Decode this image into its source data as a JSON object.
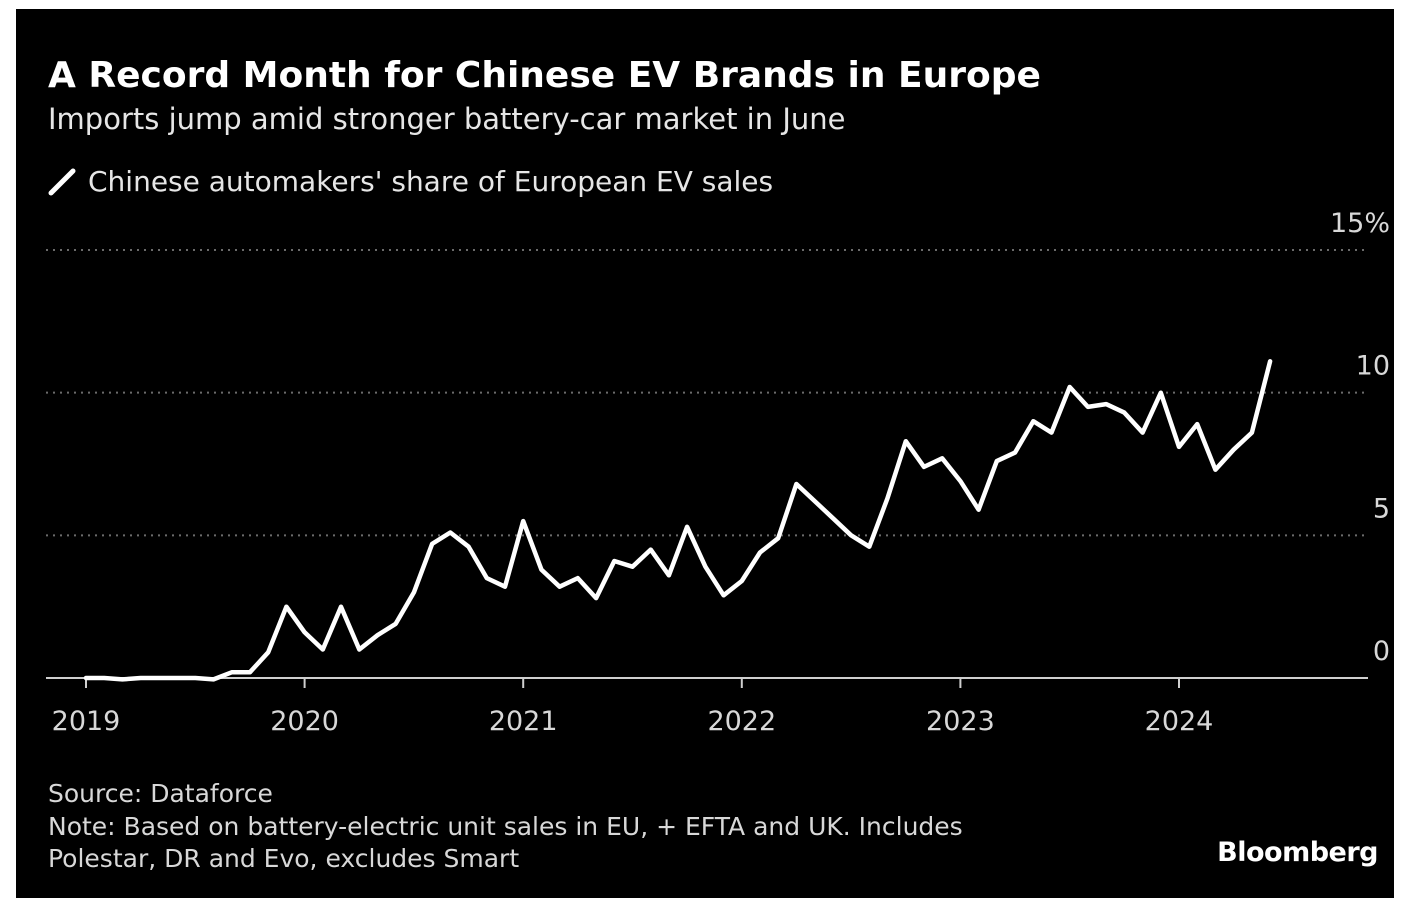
{
  "title": "A Record Month for Chinese EV Brands in Europe",
  "subtitle": "Imports jump amid stronger battery-car market in June",
  "legend_label": "Chinese automakers' share of European EV sales",
  "source": "Source: Dataforce",
  "note_line1": "Note: Based on battery-electric unit sales in EU, + EFTA and UK. Includes",
  "note_line2": "Polestar, DR and Evo, excludes Smart",
  "brand": "Bloomberg",
  "colors": {
    "background": "#000000",
    "line": "#ffffff",
    "grid": "#6b6b6b",
    "text": "#d8d8d8"
  },
  "chart_data": {
    "type": "line",
    "title": "A Record Month for Chinese EV Brands in Europe",
    "subtitle": "Imports jump amid stronger battery-car market in June",
    "xlabel": "",
    "ylabel": "",
    "x_ticks": [
      "2019",
      "2020",
      "2021",
      "2022",
      "2023",
      "2024"
    ],
    "y_ticks": [
      {
        "value": 0,
        "label": "0"
      },
      {
        "value": 5,
        "label": "5"
      },
      {
        "value": 10,
        "label": "10"
      },
      {
        "value": 15,
        "label": "15%"
      }
    ],
    "ylim": [
      0,
      15
    ],
    "y_axis_position": "right",
    "grid": "dotted horizontal",
    "legend_position": "top-left",
    "series": [
      {
        "name": "Chinese automakers' share of European EV sales",
        "x": [
          "2019-01",
          "2019-02",
          "2019-03",
          "2019-04",
          "2019-05",
          "2019-06",
          "2019-07",
          "2019-08",
          "2019-09",
          "2019-10",
          "2019-11",
          "2019-12",
          "2020-01",
          "2020-02",
          "2020-03",
          "2020-04",
          "2020-05",
          "2020-06",
          "2020-07",
          "2020-08",
          "2020-09",
          "2020-10",
          "2020-11",
          "2020-12",
          "2021-01",
          "2021-02",
          "2021-03",
          "2021-04",
          "2021-05",
          "2021-06",
          "2021-07",
          "2021-08",
          "2021-09",
          "2021-10",
          "2021-11",
          "2021-12",
          "2022-01",
          "2022-02",
          "2022-03",
          "2022-04",
          "2022-05",
          "2022-06",
          "2022-07",
          "2022-08",
          "2022-09",
          "2022-10",
          "2022-11",
          "2022-12",
          "2023-01",
          "2023-02",
          "2023-03",
          "2023-04",
          "2023-05",
          "2023-06",
          "2023-07",
          "2023-08",
          "2023-09",
          "2023-10",
          "2023-11",
          "2023-12",
          "2024-01",
          "2024-02",
          "2024-03",
          "2024-04",
          "2024-05",
          "2024-06"
        ],
        "values": [
          0.0,
          0.0,
          -0.05,
          0.0,
          0.0,
          0.0,
          0.0,
          -0.05,
          0.2,
          0.2,
          0.9,
          2.5,
          1.6,
          1.0,
          2.5,
          1.0,
          1.5,
          1.9,
          3.0,
          4.7,
          5.1,
          4.6,
          3.5,
          3.2,
          5.5,
          3.8,
          3.2,
          3.5,
          2.8,
          4.1,
          3.9,
          4.5,
          3.6,
          5.3,
          3.9,
          2.9,
          3.4,
          4.4,
          4.9,
          6.8,
          6.2,
          5.6,
          5.0,
          4.6,
          6.3,
          8.3,
          7.4,
          7.7,
          6.9,
          5.9,
          7.6,
          7.9,
          9.0,
          8.6,
          10.2,
          9.5,
          9.6,
          9.3,
          8.6,
          10.0,
          8.1,
          8.9,
          7.3,
          8.0,
          8.6,
          11.1
        ]
      }
    ]
  }
}
